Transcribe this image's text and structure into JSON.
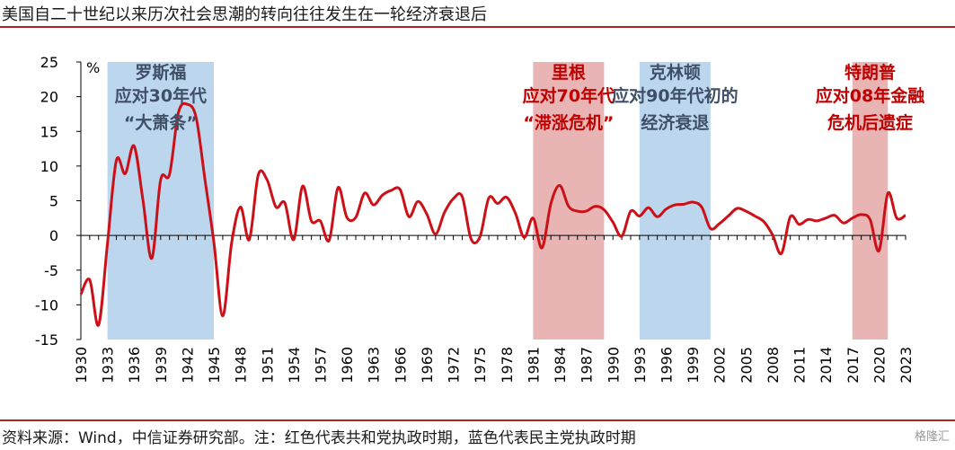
{
  "title": "美国自二十世纪以来历次社会思潮的转向往往发生在一轮经济衰退后",
  "source": "资料来源：Wind，中信证券研究部。注：红色代表共和党执政时期，蓝色代表民主党执政时期",
  "watermark": "格隆汇",
  "chart_data": {
    "type": "line",
    "title": "美国自二十世纪以来历次社会思潮的转向往往发生在一轮经济衰退后",
    "xlabel": "",
    "ylabel": "%",
    "xlim": [
      1930,
      2023
    ],
    "ylim": [
      -15,
      25
    ],
    "yticks": [
      -15,
      -10,
      -5,
      0,
      5,
      10,
      15,
      20,
      25
    ],
    "xticks": [
      1930,
      1933,
      1936,
      1939,
      1942,
      1945,
      1948,
      1951,
      1954,
      1957,
      1960,
      1963,
      1966,
      1969,
      1972,
      1975,
      1978,
      1981,
      1984,
      1987,
      1990,
      1993,
      1996,
      1999,
      2002,
      2005,
      2008,
      2011,
      2014,
      2017,
      2020,
      2023
    ],
    "grid": false,
    "colors": {
      "line": "#cc1018",
      "red_band": "#e8b4b4",
      "blue_band": "#bcd6ee",
      "red_text": "#c00000",
      "blue_text": "#3f4f66"
    },
    "bands": [
      {
        "start": 1933,
        "end": 1945,
        "party": "blue",
        "lines": [
          "罗斯福",
          "应对30年代",
          "“大萧条”"
        ]
      },
      {
        "start": 1981,
        "end": 1989,
        "party": "red",
        "lines": [
          "里根",
          "应对70年代",
          "“滞涨危机”"
        ]
      },
      {
        "start": 1993,
        "end": 2001,
        "party": "blue",
        "lines": [
          "克林顿",
          "应对90年代初的",
          "经济衰退"
        ]
      },
      {
        "start": 2017,
        "end": 2021,
        "party": "red",
        "lines": [
          "特朗普",
          "应对08年金融",
          "危机后遗症"
        ]
      }
    ],
    "series": [
      {
        "x": [
          1930,
          1931,
          1932,
          1933,
          1934,
          1935,
          1936,
          1937,
          1938,
          1939,
          1940,
          1941,
          1942,
          1943,
          1944,
          1945,
          1946,
          1947,
          1948,
          1949,
          1950,
          1951,
          1952,
          1953,
          1954,
          1955,
          1956,
          1957,
          1958,
          1959,
          1960,
          1961,
          1962,
          1963,
          1964,
          1965,
          1966,
          1967,
          1968,
          1969,
          1970,
          1971,
          1972,
          1973,
          1974,
          1975,
          1976,
          1977,
          1978,
          1979,
          1980,
          1981,
          1982,
          1983,
          1984,
          1985,
          1986,
          1987,
          1988,
          1989,
          1990,
          1991,
          1992,
          1993,
          1994,
          1995,
          1996,
          1997,
          1998,
          1999,
          2000,
          2001,
          2002,
          2003,
          2004,
          2005,
          2006,
          2007,
          2008,
          2009,
          2010,
          2011,
          2012,
          2013,
          2014,
          2015,
          2016,
          2017,
          2018,
          2019,
          2020,
          2021,
          2022,
          2023
        ],
        "values": [
          -8.5,
          -6.4,
          -12.9,
          -1.2,
          10.8,
          8.9,
          12.9,
          5.1,
          -3.3,
          8.0,
          8.8,
          17.7,
          18.9,
          17.0,
          8.0,
          -1.0,
          -11.6,
          -1.1,
          4.1,
          -0.6,
          8.7,
          8.0,
          4.1,
          4.7,
          -0.6,
          7.1,
          2.1,
          2.1,
          -0.7,
          6.9,
          2.6,
          2.6,
          6.1,
          4.4,
          5.8,
          6.5,
          6.6,
          2.7,
          4.9,
          3.1,
          0.2,
          3.3,
          5.3,
          5.6,
          -0.5,
          -0.2,
          5.4,
          4.6,
          5.5,
          3.2,
          -0.3,
          2.5,
          -1.8,
          4.6,
          7.2,
          4.2,
          3.5,
          3.5,
          4.2,
          3.7,
          1.9,
          -0.1,
          3.5,
          2.8,
          4.0,
          2.7,
          3.8,
          4.4,
          4.5,
          4.8,
          4.1,
          1.0,
          1.7,
          2.8,
          3.9,
          3.5,
          2.8,
          2.0,
          0.1,
          -2.6,
          2.7,
          1.6,
          2.3,
          2.1,
          2.5,
          2.9,
          1.8,
          2.5,
          3.0,
          2.3,
          -2.2,
          6.1,
          2.5,
          2.9
        ]
      }
    ]
  }
}
